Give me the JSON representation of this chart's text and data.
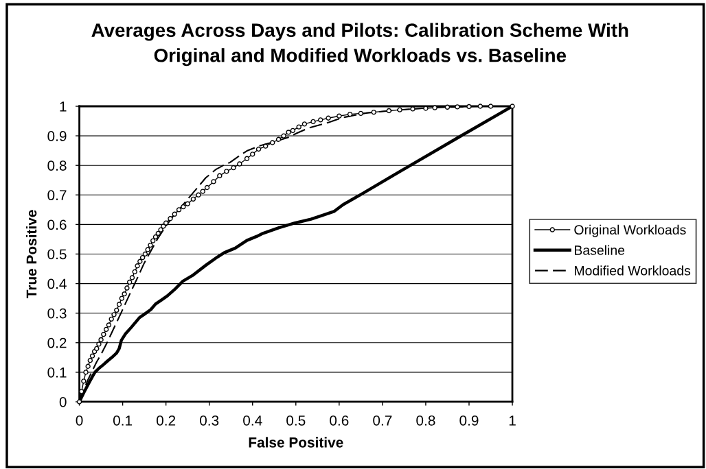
{
  "chart_data": {
    "type": "line",
    "title": "Averages Across Days and Pilots: Calibration Scheme With\nOriginal and Modified Workloads vs. Baseline",
    "xlabel": "False Positive",
    "ylabel": "True Positive",
    "xlim": [
      0,
      1
    ],
    "ylim": [
      0,
      1
    ],
    "xticks": [
      0,
      0.1,
      0.2,
      0.3,
      0.4,
      0.5,
      0.6,
      0.7,
      0.8,
      0.9,
      1
    ],
    "yticks": [
      0,
      0.1,
      0.2,
      0.3,
      0.4,
      0.5,
      0.6,
      0.7,
      0.8,
      0.9,
      1
    ],
    "grid": "y",
    "legend": "right",
    "series": [
      {
        "name": "Original Workloads",
        "color": "#000000",
        "marker": "circle",
        "line_style": "solid",
        "x": [
          0,
          0.005,
          0.01,
          0.015,
          0.02,
          0.025,
          0.03,
          0.035,
          0.04,
          0.045,
          0.05,
          0.056,
          0.062,
          0.068,
          0.074,
          0.08,
          0.086,
          0.092,
          0.098,
          0.104,
          0.11,
          0.116,
          0.122,
          0.128,
          0.134,
          0.14,
          0.146,
          0.152,
          0.158,
          0.164,
          0.17,
          0.176,
          0.182,
          0.188,
          0.194,
          0.2,
          0.21,
          0.22,
          0.23,
          0.24,
          0.25,
          0.263,
          0.275,
          0.285,
          0.295,
          0.31,
          0.324,
          0.34,
          0.356,
          0.37,
          0.387,
          0.4,
          0.414,
          0.43,
          0.446,
          0.46,
          0.472,
          0.483,
          0.493,
          0.507,
          0.52,
          0.54,
          0.557,
          0.575,
          0.6,
          0.625,
          0.65,
          0.68,
          0.715,
          0.74,
          0.77,
          0.8,
          0.821,
          0.85,
          0.873,
          0.9,
          0.926,
          0.95,
          1
        ],
        "values": [
          0,
          0.035,
          0.07,
          0.1,
          0.12,
          0.14,
          0.155,
          0.17,
          0.18,
          0.195,
          0.21,
          0.228,
          0.245,
          0.26,
          0.28,
          0.295,
          0.31,
          0.33,
          0.35,
          0.365,
          0.385,
          0.405,
          0.42,
          0.44,
          0.46,
          0.475,
          0.488,
          0.5,
          0.515,
          0.53,
          0.545,
          0.558,
          0.57,
          0.582,
          0.594,
          0.605,
          0.62,
          0.635,
          0.65,
          0.66,
          0.67,
          0.686,
          0.7,
          0.712,
          0.725,
          0.745,
          0.765,
          0.78,
          0.792,
          0.805,
          0.823,
          0.838,
          0.855,
          0.865,
          0.877,
          0.888,
          0.9,
          0.912,
          0.918,
          0.93,
          0.94,
          0.948,
          0.954,
          0.96,
          0.967,
          0.973,
          0.976,
          0.98,
          0.985,
          0.988,
          0.991,
          0.993,
          0.995,
          0.997,
          0.998,
          0.999,
          1,
          1,
          1
        ]
      },
      {
        "name": "Baseline",
        "color": "#000000",
        "marker": "none",
        "line_style": "solid",
        "x": [
          0,
          0.01,
          0.02,
          0.03,
          0.036,
          0.045,
          0.055,
          0.065,
          0.075,
          0.086,
          0.092,
          0.097,
          0.107,
          0.12,
          0.139,
          0.15,
          0.165,
          0.176,
          0.19,
          0.203,
          0.22,
          0.239,
          0.261,
          0.292,
          0.319,
          0.335,
          0.36,
          0.387,
          0.41,
          0.424,
          0.461,
          0.498,
          0.535,
          0.56,
          0.588,
          0.609,
          0.651,
          0.741,
          0.884,
          1
        ],
        "values": [
          0,
          0.03,
          0.058,
          0.085,
          0.1,
          0.113,
          0.125,
          0.138,
          0.15,
          0.165,
          0.18,
          0.208,
          0.231,
          0.252,
          0.285,
          0.296,
          0.312,
          0.331,
          0.345,
          0.358,
          0.38,
          0.408,
          0.427,
          0.462,
          0.49,
          0.505,
          0.52,
          0.546,
          0.56,
          0.57,
          0.589,
          0.605,
          0.618,
          0.63,
          0.644,
          0.667,
          0.702,
          0.78,
          0.902,
          1
        ]
      },
      {
        "name": "Modified Workloads",
        "color": "#000000",
        "marker": "none",
        "line_style": "dashed",
        "x": [
          0,
          0.01,
          0.02,
          0.03,
          0.04,
          0.05,
          0.064,
          0.08,
          0.098,
          0.115,
          0.135,
          0.15,
          0.165,
          0.18,
          0.199,
          0.215,
          0.23,
          0.25,
          0.273,
          0.292,
          0.316,
          0.335,
          0.348,
          0.372,
          0.387,
          0.414,
          0.451,
          0.483,
          0.504,
          0.53,
          0.577,
          0.609,
          0.662,
          0.741,
          0.821,
          0.926,
          1
        ],
        "values": [
          0,
          0.04,
          0.075,
          0.105,
          0.135,
          0.16,
          0.2,
          0.25,
          0.306,
          0.36,
          0.422,
          0.47,
          0.51,
          0.55,
          0.593,
          0.625,
          0.65,
          0.685,
          0.725,
          0.758,
          0.787,
          0.802,
          0.81,
          0.835,
          0.849,
          0.865,
          0.88,
          0.895,
          0.91,
          0.927,
          0.946,
          0.962,
          0.977,
          0.988,
          0.996,
          1,
          1
        ]
      }
    ]
  }
}
